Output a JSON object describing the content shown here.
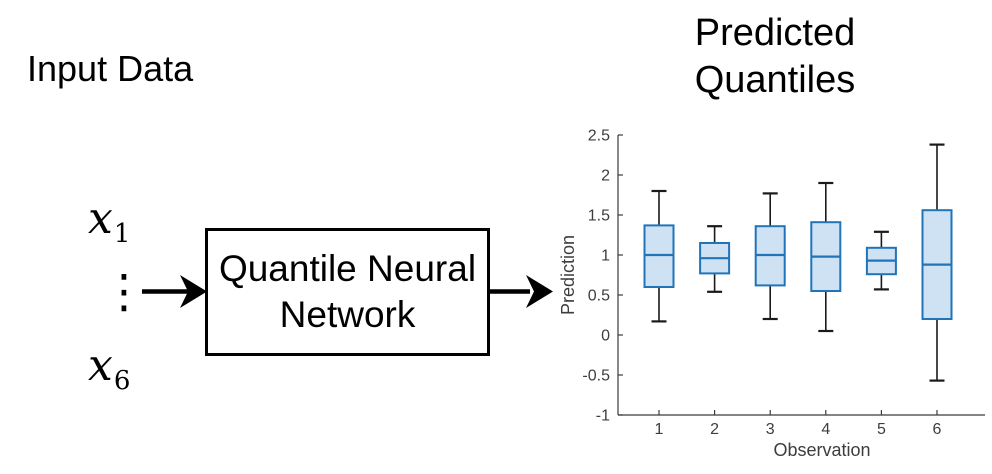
{
  "diagram": {
    "input_label": "Input Data",
    "input_first_var": "x",
    "input_first_sub": "1",
    "input_dots": "⋮",
    "input_last_var": "x",
    "input_last_sub": "6",
    "nn_box_line1": "Quantile Neural",
    "nn_box_line2": "Network"
  },
  "chart_data": {
    "type": "boxplot",
    "title": "Predicted Quantiles",
    "title_lines": [
      "Predicted",
      "Quantiles"
    ],
    "xlabel": "Observation",
    "ylabel": "Prediction",
    "categories": [
      1,
      2,
      3,
      4,
      5,
      6
    ],
    "xtick_labels": [
      "1",
      "2",
      "3",
      "4",
      "5",
      "6"
    ],
    "ylim": [
      -1,
      2.5
    ],
    "yticks": [
      -1,
      -0.5,
      0,
      0.5,
      1,
      1.5,
      2,
      2.5
    ],
    "ytick_labels": [
      "-1",
      "-0.5",
      "0",
      "0.5",
      "1",
      "1.5",
      "2",
      "2.5"
    ],
    "grid": false,
    "legend": false,
    "boxes": [
      {
        "observation": 1,
        "whisker_low": 0.17,
        "q1": 0.6,
        "median": 1.0,
        "q3": 1.37,
        "whisker_high": 1.8
      },
      {
        "observation": 2,
        "whisker_low": 0.54,
        "q1": 0.77,
        "median": 0.96,
        "q3": 1.15,
        "whisker_high": 1.36
      },
      {
        "observation": 3,
        "whisker_low": 0.2,
        "q1": 0.62,
        "median": 1.0,
        "q3": 1.36,
        "whisker_high": 1.77
      },
      {
        "observation": 4,
        "whisker_low": 0.05,
        "q1": 0.55,
        "median": 0.98,
        "q3": 1.41,
        "whisker_high": 1.9
      },
      {
        "observation": 5,
        "whisker_low": 0.57,
        "q1": 0.76,
        "median": 0.93,
        "q3": 1.09,
        "whisker_high": 1.29
      },
      {
        "observation": 6,
        "whisker_low": -0.57,
        "q1": 0.2,
        "median": 0.88,
        "q3": 1.56,
        "whisker_high": 2.38
      }
    ],
    "colors": {
      "box_fill": "#cfe2f4",
      "box_edge": "#1f74ba",
      "median": "#1f74ba",
      "whisker": "#1a1a1a",
      "axis": "#3b3b3b",
      "tick_text": "#3d3d3d"
    }
  },
  "arrows": {
    "input_arrow": "arrow-right",
    "output_arrow": "arrow-right"
  }
}
